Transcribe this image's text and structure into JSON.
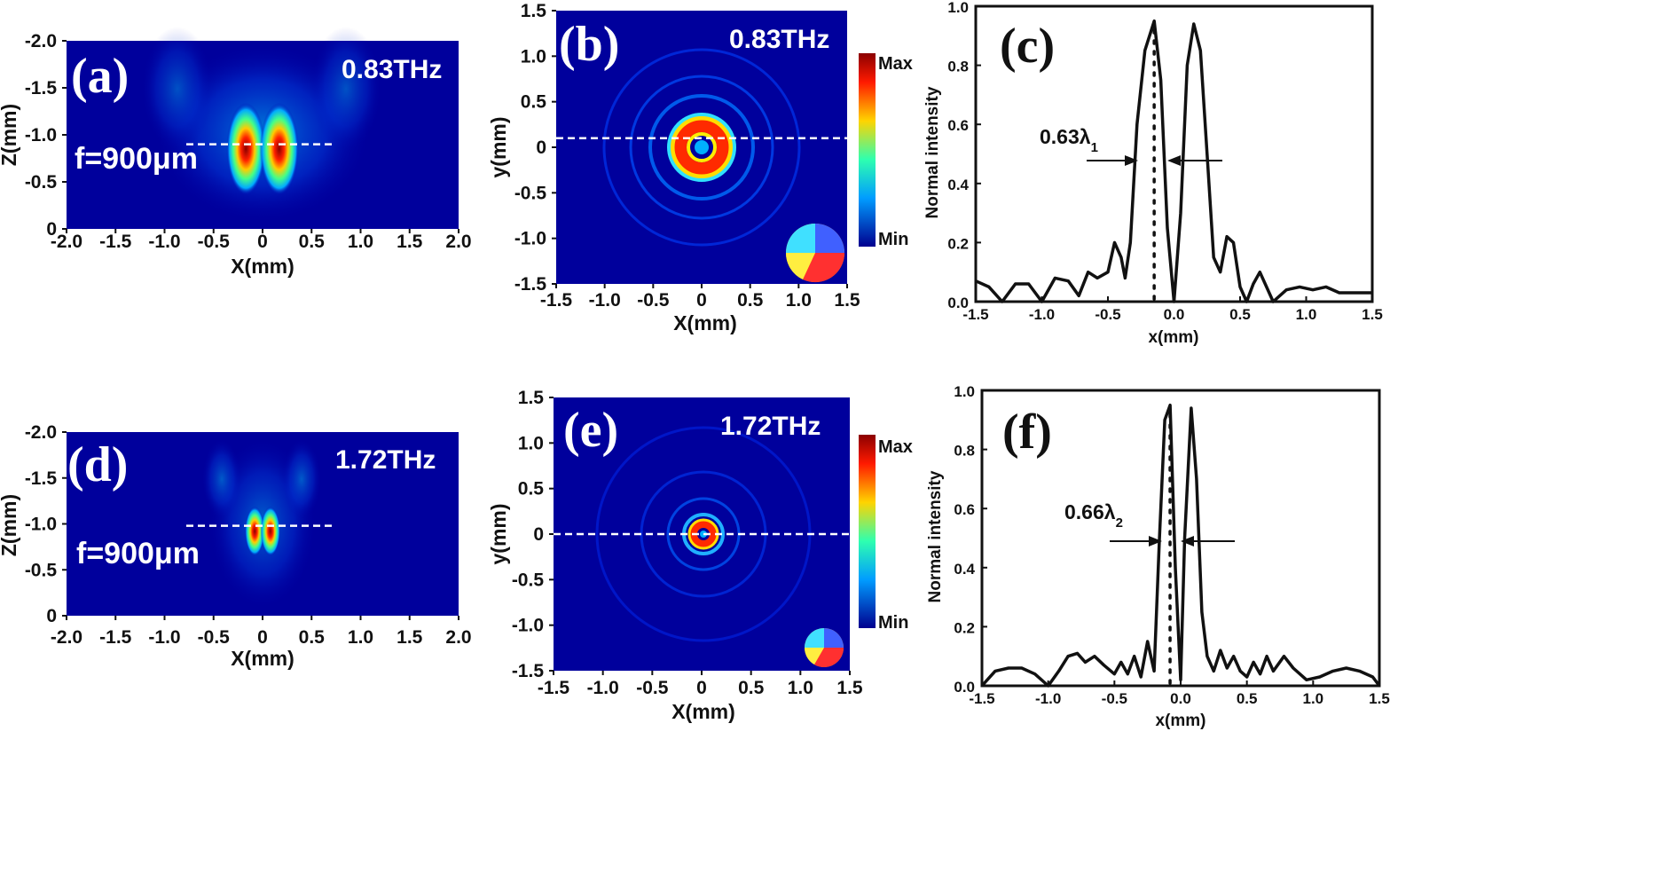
{
  "panels": {
    "a": {
      "label": "(a)",
      "freq": "0.83THz",
      "focal": "f=900μm"
    },
    "b": {
      "label": "(b)",
      "freq": "0.83THz",
      "colorbar_max": "Max",
      "colorbar_min": "Min"
    },
    "c": {
      "label": "(c)",
      "annotation": "0.63λ",
      "annotation_sub": "1"
    },
    "d": {
      "label": "(d)",
      "freq": "1.72THz",
      "focal": "f=900μm"
    },
    "e": {
      "label": "(e)",
      "freq": "1.72THz",
      "colorbar_max": "Max",
      "colorbar_min": "Min"
    },
    "f": {
      "label": "(f)",
      "annotation": "0.66λ",
      "annotation_sub": "2"
    }
  },
  "chart_data": [
    {
      "id": "a",
      "type": "heatmap",
      "xlabel": "X(mm)",
      "ylabel": "Z(mm)",
      "xlim": [
        -2.0,
        2.0
      ],
      "ylim": [
        0,
        -2.0
      ],
      "xticks": [
        "-2.0",
        "-1.5",
        "-1.0",
        "-0.5",
        "0",
        "0.5",
        "1.0",
        "1.5",
        "2.0"
      ],
      "yticks": [
        "-2.0",
        "-1.5",
        "-1.0",
        "-0.5",
        "0"
      ],
      "focal_line_z": -0.9,
      "lobes": [
        {
          "x": -0.17,
          "z": -0.85
        },
        {
          "x": 0.17,
          "z": -0.85
        }
      ]
    },
    {
      "id": "b",
      "type": "heatmap",
      "xlabel": "X(mm)",
      "ylabel": "y(mm)",
      "xlim": [
        -1.5,
        1.5
      ],
      "ylim": [
        -1.5,
        1.5
      ],
      "xticks": [
        "-1.5",
        "-1.0",
        "-0.5",
        "0",
        "0.5",
        "1.0",
        "1.5"
      ],
      "yticks": [
        "1.5",
        "1.0",
        "0.5",
        "0",
        "-0.5",
        "-1.0",
        "-1.5"
      ],
      "dashed_line_y": 0.1,
      "ring_radius_mm": 0.25
    },
    {
      "id": "c",
      "type": "line",
      "xlabel": "x(mm)",
      "ylabel": "Normal intensity",
      "xlim": [
        -1.5,
        1.5
      ],
      "ylim": [
        0,
        1.0
      ],
      "xticks": [
        "-1.5",
        "-1.0",
        "-0.5",
        "0.0",
        "0.5",
        "1.0",
        "1.5"
      ],
      "yticks": [
        "0.0",
        "0.2",
        "0.4",
        "0.6",
        "0.8",
        "1.0"
      ],
      "x": [
        -1.5,
        -1.4,
        -1.3,
        -1.2,
        -1.1,
        -1.0,
        -0.9,
        -0.8,
        -0.72,
        -0.65,
        -0.58,
        -0.5,
        -0.45,
        -0.4,
        -0.37,
        -0.33,
        -0.28,
        -0.22,
        -0.15,
        -0.1,
        -0.05,
        0.0,
        0.05,
        0.1,
        0.15,
        0.2,
        0.25,
        0.3,
        0.35,
        0.4,
        0.45,
        0.5,
        0.55,
        0.6,
        0.65,
        0.7,
        0.75,
        0.85,
        0.95,
        1.05,
        1.15,
        1.25,
        1.35,
        1.5
      ],
      "y": [
        0.07,
        0.05,
        0.0,
        0.06,
        0.06,
        0.0,
        0.08,
        0.07,
        0.02,
        0.1,
        0.08,
        0.1,
        0.2,
        0.15,
        0.08,
        0.2,
        0.6,
        0.85,
        0.95,
        0.75,
        0.25,
        0.0,
        0.3,
        0.8,
        0.94,
        0.85,
        0.5,
        0.15,
        0.1,
        0.22,
        0.2,
        0.05,
        0.0,
        0.06,
        0.1,
        0.05,
        0.0,
        0.04,
        0.05,
        0.04,
        0.05,
        0.03,
        0.03,
        0.03
      ],
      "dotted_x": -0.15
    },
    {
      "id": "d",
      "type": "heatmap",
      "xlabel": "X(mm)",
      "ylabel": "Z(mm)",
      "xlim": [
        -2.0,
        2.0
      ],
      "ylim": [
        0,
        -2.0
      ],
      "xticks": [
        "-2.0",
        "-1.5",
        "-1.0",
        "-0.5",
        "0",
        "0.5",
        "1.0",
        "1.5",
        "2.0"
      ],
      "yticks": [
        "-2.0",
        "-1.5",
        "-1.0",
        "-0.5",
        "0"
      ],
      "focal_line_z": -0.98,
      "lobes": [
        {
          "x": -0.08,
          "z": -0.92
        },
        {
          "x": 0.08,
          "z": -0.92
        }
      ]
    },
    {
      "id": "e",
      "type": "heatmap",
      "xlabel": "X(mm)",
      "ylabel": "y(mm)",
      "xlim": [
        -1.5,
        1.5
      ],
      "ylim": [
        -1.5,
        1.5
      ],
      "xticks": [
        "-1.5",
        "-1.0",
        "-0.5",
        "0",
        "0.5",
        "1.0",
        "1.5"
      ],
      "yticks": [
        "1.5",
        "1.0",
        "0.5",
        "0",
        "-0.5",
        "-1.0",
        "-1.5"
      ],
      "dashed_line_y": 0.0,
      "ring_radius_mm": 0.1
    },
    {
      "id": "f",
      "type": "line",
      "xlabel": "x(mm)",
      "ylabel": "Normal intensity",
      "xlim": [
        -1.5,
        1.5
      ],
      "ylim": [
        0,
        1.0
      ],
      "xticks": [
        "-1.5",
        "-1.0",
        "-0.5",
        "0.0",
        "0.5",
        "1.0",
        "1.5"
      ],
      "yticks": [
        "0.0",
        "0.2",
        "0.4",
        "0.6",
        "0.8",
        "1.0"
      ],
      "x": [
        -1.5,
        -1.4,
        -1.3,
        -1.2,
        -1.1,
        -1.0,
        -0.92,
        -0.85,
        -0.78,
        -0.72,
        -0.65,
        -0.58,
        -0.5,
        -0.45,
        -0.4,
        -0.35,
        -0.3,
        -0.25,
        -0.2,
        -0.16,
        -0.12,
        -0.08,
        -0.04,
        0.0,
        0.03,
        0.08,
        0.12,
        0.16,
        0.2,
        0.25,
        0.3,
        0.35,
        0.4,
        0.45,
        0.5,
        0.55,
        0.6,
        0.65,
        0.7,
        0.78,
        0.85,
        0.95,
        1.05,
        1.15,
        1.25,
        1.35,
        1.45,
        1.5
      ],
      "y": [
        0.0,
        0.05,
        0.06,
        0.06,
        0.04,
        0.0,
        0.05,
        0.1,
        0.11,
        0.08,
        0.1,
        0.07,
        0.04,
        0.08,
        0.04,
        0.1,
        0.03,
        0.15,
        0.05,
        0.5,
        0.9,
        0.95,
        0.4,
        0.02,
        0.5,
        0.94,
        0.7,
        0.25,
        0.1,
        0.05,
        0.12,
        0.06,
        0.1,
        0.05,
        0.03,
        0.08,
        0.04,
        0.1,
        0.05,
        0.1,
        0.06,
        0.02,
        0.03,
        0.05,
        0.06,
        0.05,
        0.03,
        0.0
      ],
      "dotted_x": -0.08
    }
  ]
}
